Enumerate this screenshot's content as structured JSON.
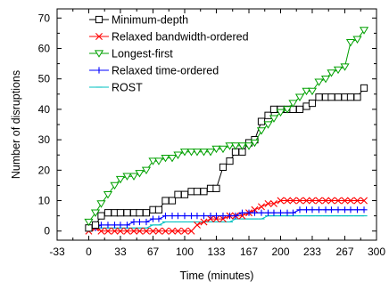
{
  "chart_data": {
    "type": "line",
    "xlabel": "Time (minutes)",
    "ylabel": "Number of disruptions",
    "xlim": [
      -33,
      300
    ],
    "ylim": [
      -3,
      73
    ],
    "xticks": [
      -33,
      0,
      33,
      67,
      100,
      133,
      167,
      200,
      233,
      267,
      300
    ],
    "xtick_labels": [
      "-33",
      "0",
      "33",
      "67",
      "100",
      "133",
      "167",
      "200",
      "233",
      "267",
      "300"
    ],
    "yticks": [
      0,
      10,
      20,
      30,
      40,
      50,
      60,
      70
    ],
    "ytick_labels": [
      "0",
      "10",
      "20",
      "30",
      "40",
      "50",
      "60",
      "70"
    ],
    "grid": false,
    "legend_position": "top-left",
    "series": [
      {
        "name": "Minimum-depth",
        "color": "#000000",
        "marker": "square",
        "x": [
          0,
          7,
          13,
          20,
          27,
          33,
          40,
          47,
          53,
          60,
          67,
          73,
          80,
          87,
          93,
          100,
          107,
          113,
          120,
          127,
          133,
          140,
          147,
          153,
          160,
          167,
          173,
          180,
          187,
          193,
          200,
          207,
          213,
          220,
          227,
          233,
          240,
          247,
          253,
          260,
          267,
          273,
          280,
          287
        ],
        "y": [
          1,
          2,
          5,
          6,
          6,
          6,
          6,
          6,
          6,
          6,
          7,
          7,
          10,
          10,
          12,
          12,
          13,
          13,
          13,
          14,
          14,
          21,
          23,
          26,
          26,
          29,
          30,
          36,
          38,
          40,
          40,
          40,
          40,
          40,
          41,
          42,
          44,
          44,
          44,
          44,
          44,
          44,
          44,
          47
        ]
      },
      {
        "name": "Relaxed bandwidth-ordered",
        "color": "#ff0000",
        "marker": "x",
        "x": [
          0,
          7,
          13,
          20,
          27,
          33,
          40,
          47,
          53,
          60,
          67,
          73,
          80,
          87,
          93,
          100,
          107,
          113,
          120,
          127,
          133,
          140,
          147,
          153,
          160,
          167,
          173,
          180,
          187,
          193,
          200,
          207,
          213,
          220,
          227,
          233,
          240,
          247,
          253,
          260,
          267,
          273,
          280,
          287
        ],
        "y": [
          0,
          1,
          0,
          0,
          0,
          0,
          0,
          0,
          0,
          0,
          0,
          0,
          0,
          0,
          0,
          0,
          0,
          2,
          3,
          4,
          4,
          4,
          5,
          5,
          5,
          6,
          7,
          8,
          9,
          9,
          10,
          10,
          10,
          10,
          10,
          10,
          10,
          10,
          10,
          10,
          10,
          10,
          10,
          10
        ]
      },
      {
        "name": "Longest-first",
        "color": "#00a000",
        "marker": "triangle-down",
        "x": [
          0,
          7,
          13,
          20,
          27,
          33,
          40,
          47,
          53,
          60,
          67,
          73,
          80,
          87,
          93,
          100,
          107,
          113,
          120,
          127,
          133,
          140,
          147,
          153,
          160,
          167,
          173,
          180,
          187,
          193,
          200,
          207,
          213,
          220,
          227,
          233,
          240,
          247,
          253,
          260,
          267,
          273,
          280,
          287
        ],
        "y": [
          3,
          6,
          9,
          12,
          15,
          17,
          18,
          18,
          19,
          20,
          23,
          23,
          24,
          24,
          25,
          26,
          26,
          26,
          26,
          26,
          27,
          27,
          28,
          28,
          28,
          28,
          29,
          33,
          35,
          37,
          39,
          40,
          42,
          44,
          46,
          46,
          49,
          50,
          52,
          53,
          54,
          62,
          63,
          66
        ]
      },
      {
        "name": "Relaxed time-ordered",
        "color": "#0000ff",
        "marker": "plus",
        "x": [
          0,
          7,
          13,
          20,
          27,
          33,
          40,
          47,
          53,
          60,
          67,
          73,
          80,
          87,
          93,
          100,
          107,
          113,
          120,
          127,
          133,
          140,
          147,
          153,
          160,
          167,
          173,
          180,
          187,
          193,
          200,
          207,
          213,
          220,
          227,
          233,
          240,
          247,
          253,
          260,
          267,
          273,
          280,
          287
        ],
        "y": [
          1,
          1,
          2,
          2,
          2,
          2,
          2,
          3,
          3,
          3,
          4,
          4,
          5,
          5,
          5,
          5,
          5,
          5,
          5,
          5,
          5,
          5,
          5,
          5,
          6,
          6,
          6,
          6,
          6,
          6,
          6,
          6,
          6,
          7,
          7,
          7,
          7,
          7,
          7,
          7,
          7,
          7,
          7,
          7
        ]
      },
      {
        "name": "ROST",
        "color": "#00c0c0",
        "marker": "dash",
        "x": [
          0,
          7,
          13,
          20,
          27,
          33,
          40,
          47,
          53,
          60,
          67,
          73,
          80,
          87,
          93,
          100,
          107,
          113,
          120,
          127,
          133,
          140,
          147,
          153,
          160,
          167,
          173,
          180,
          187,
          193,
          200,
          207,
          213,
          220,
          227,
          233,
          240,
          247,
          253,
          260,
          267,
          273,
          280,
          287
        ],
        "y": [
          1,
          1,
          1,
          1,
          1,
          1,
          1,
          1,
          1,
          1,
          2,
          2,
          3,
          3,
          3,
          3,
          3,
          3,
          3,
          3,
          3,
          3,
          3,
          4,
          4,
          4,
          4,
          4,
          5,
          5,
          5,
          5,
          5,
          5,
          5,
          5,
          5,
          5,
          5,
          5,
          5,
          5,
          5,
          5
        ]
      }
    ]
  }
}
